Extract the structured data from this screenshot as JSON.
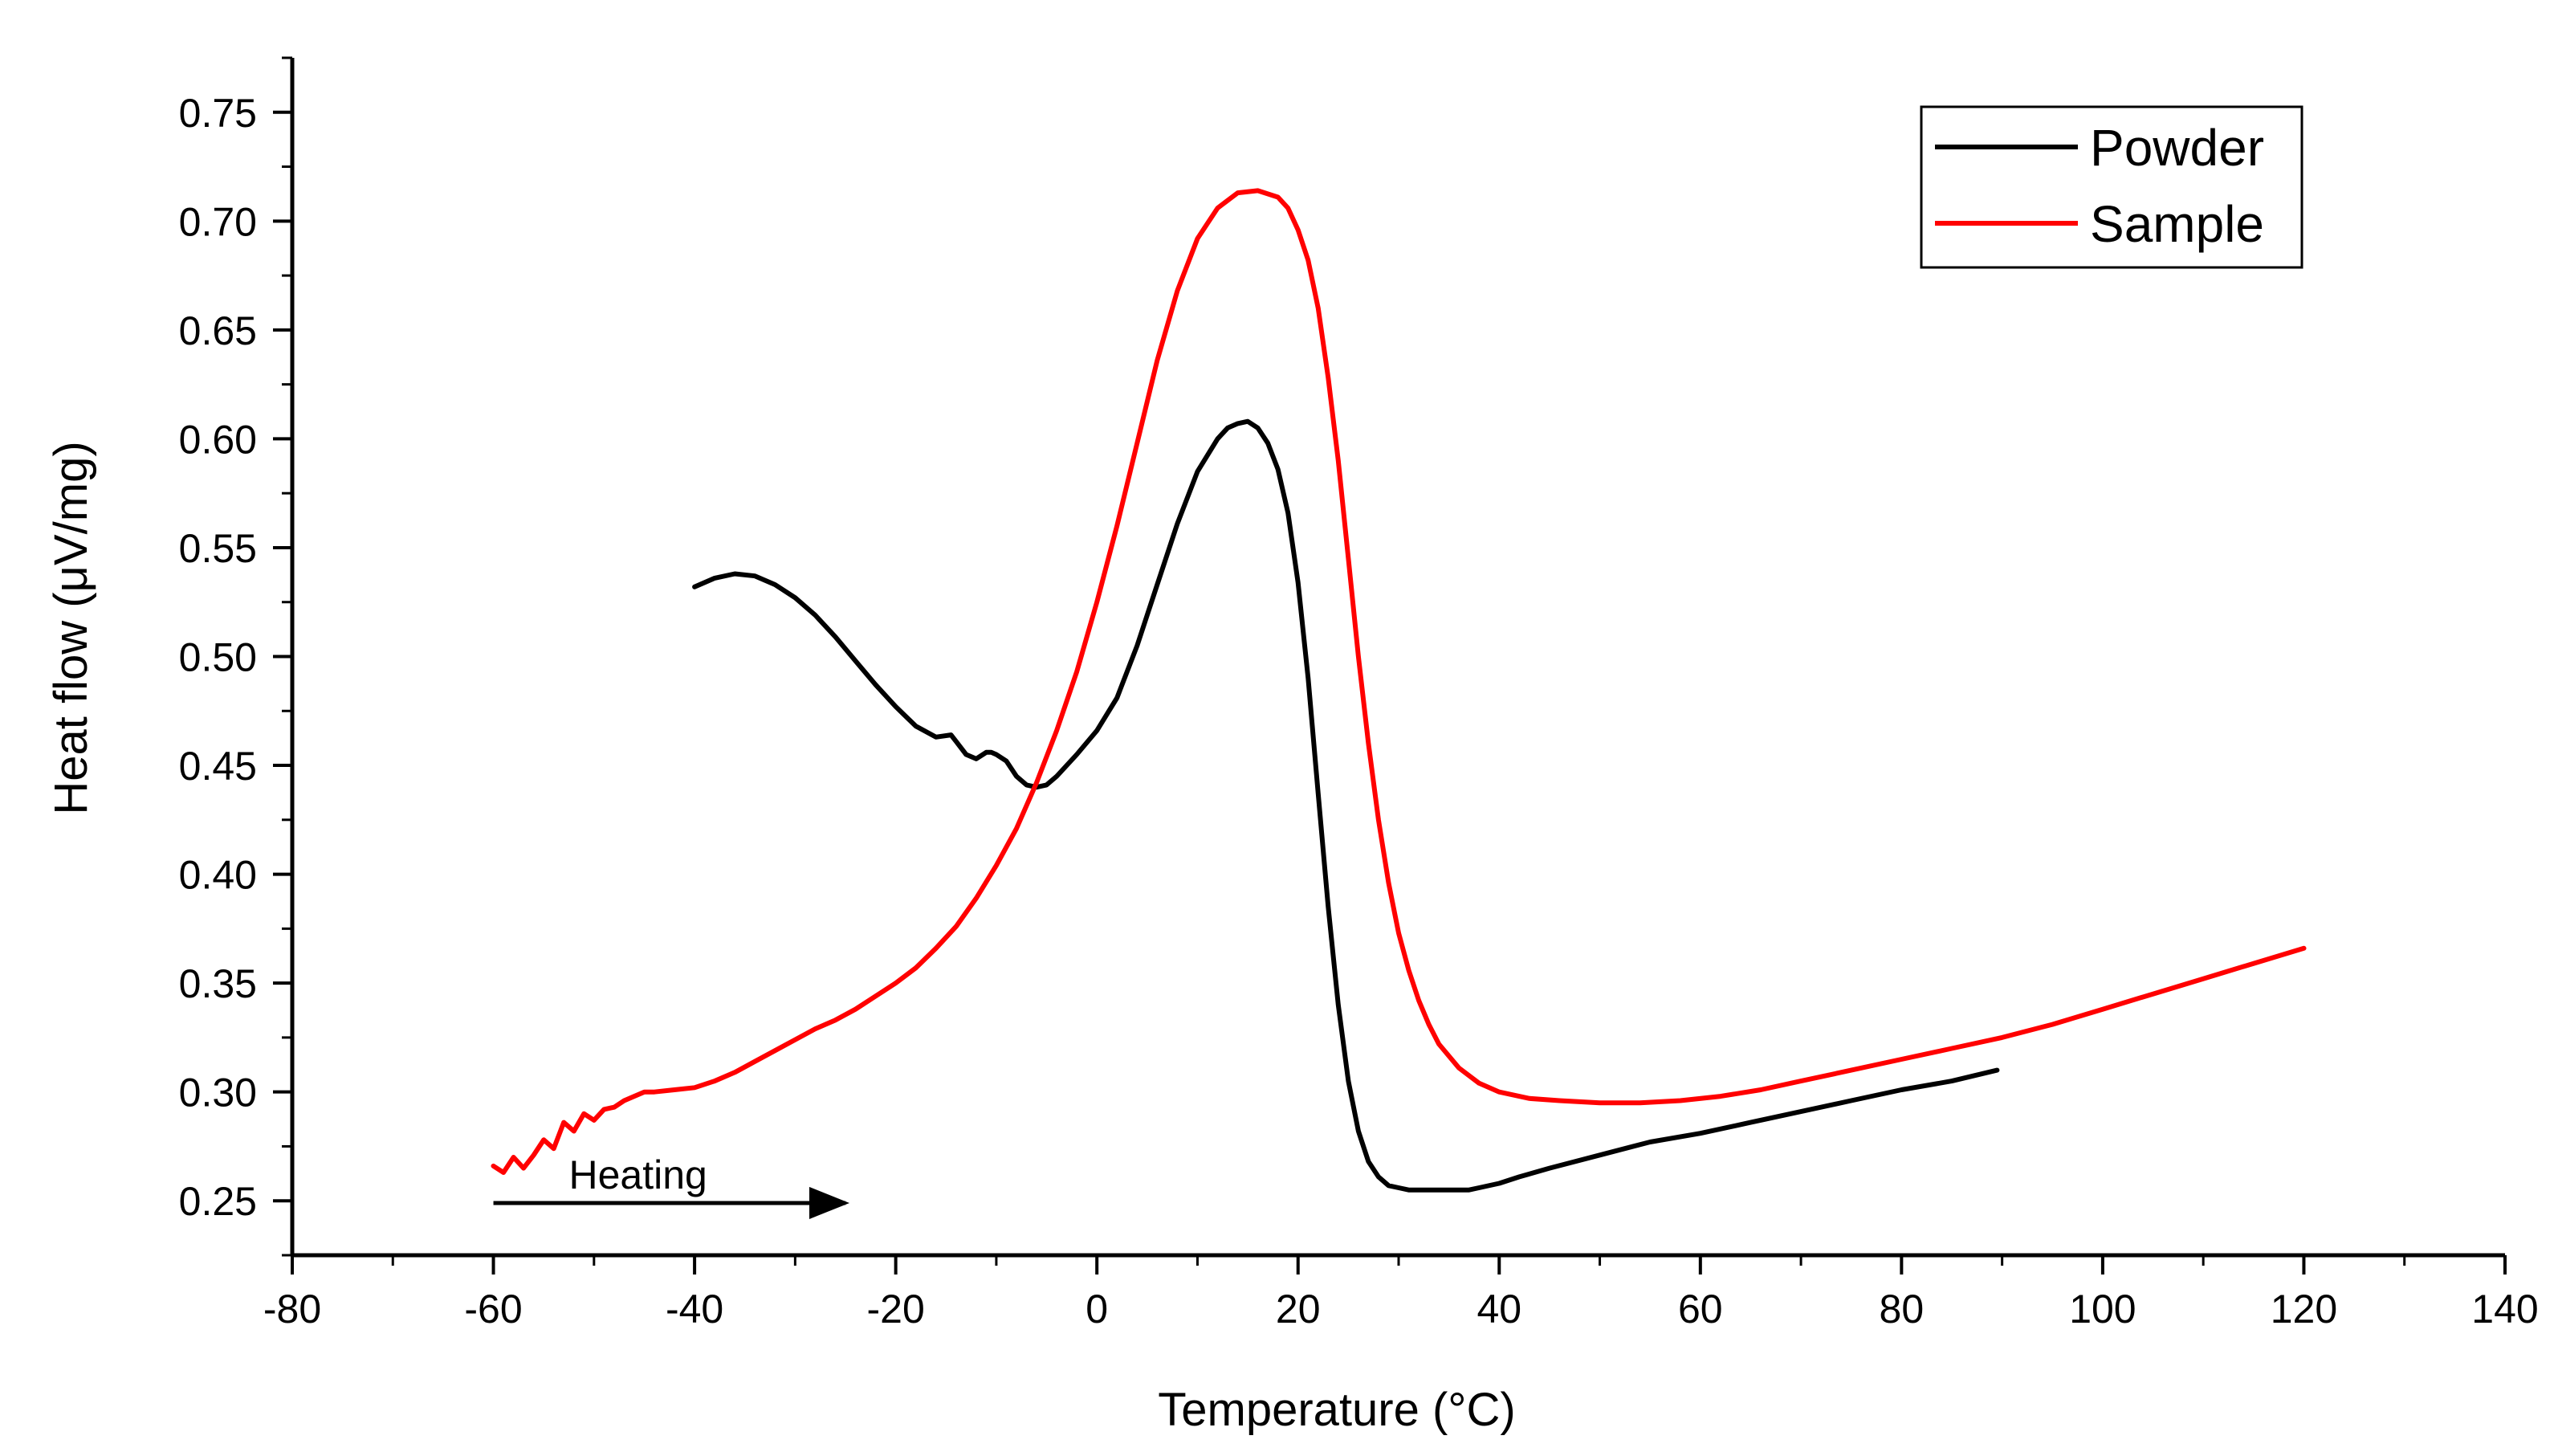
{
  "chart_data": {
    "type": "line",
    "xlabel": "Temperature (°C)",
    "ylabel": "Heat flow (μV/mg)",
    "xlim": [
      -80,
      140
    ],
    "ylim": [
      0.225,
      0.775
    ],
    "xticks": [
      -80,
      -60,
      -40,
      -20,
      0,
      20,
      40,
      60,
      80,
      100,
      120,
      140
    ],
    "xtick_labels": [
      "-80",
      "-60",
      "-40",
      "-20",
      "0",
      "20",
      "40",
      "60",
      "80",
      "100",
      "120",
      "140"
    ],
    "yticks": [
      0.25,
      0.3,
      0.35,
      0.4,
      0.45,
      0.5,
      0.55,
      0.6,
      0.65,
      0.7,
      0.75
    ],
    "ytick_labels": [
      "0.25",
      "0.30",
      "0.35",
      "0.40",
      "0.45",
      "0.50",
      "0.55",
      "0.60",
      "0.65",
      "0.70",
      "0.75"
    ],
    "legend_position": "top-right",
    "series": [
      {
        "name": "Powder",
        "color": "#000000",
        "x": [
          -40,
          -38,
          -36,
          -34,
          -32,
          -30,
          -28,
          -26,
          -24,
          -22,
          -20,
          -18,
          -16,
          -14.5,
          -14,
          -13,
          -12,
          -11,
          -10.5,
          -10,
          -9,
          -8,
          -7,
          -6,
          -5,
          -4,
          -2,
          0,
          2,
          4,
          6,
          8,
          10,
          12,
          13,
          14,
          15,
          16,
          17,
          18,
          19,
          20,
          21,
          22,
          23,
          24,
          25,
          26,
          27,
          28,
          29,
          30,
          31,
          32,
          33,
          34,
          35,
          36,
          37,
          38,
          40,
          42,
          45,
          50,
          55,
          60,
          65,
          70,
          75,
          80,
          85,
          89.5
        ],
        "y": [
          0.532,
          0.536,
          0.538,
          0.537,
          0.533,
          0.527,
          0.519,
          0.509,
          0.498,
          0.487,
          0.477,
          0.468,
          0.463,
          0.464,
          0.461,
          0.455,
          0.453,
          0.456,
          0.456,
          0.455,
          0.452,
          0.445,
          0.441,
          0.44,
          0.441,
          0.445,
          0.455,
          0.466,
          0.481,
          0.505,
          0.533,
          0.561,
          0.585,
          0.6,
          0.605,
          0.607,
          0.608,
          0.605,
          0.598,
          0.586,
          0.566,
          0.534,
          0.49,
          0.437,
          0.385,
          0.34,
          0.305,
          0.282,
          0.268,
          0.261,
          0.257,
          0.256,
          0.255,
          0.255,
          0.255,
          0.255,
          0.255,
          0.255,
          0.255,
          0.256,
          0.258,
          0.261,
          0.265,
          0.271,
          0.277,
          0.281,
          0.286,
          0.291,
          0.296,
          0.301,
          0.305,
          0.31
        ]
      },
      {
        "name": "Sample",
        "color": "#ff0000",
        "x": [
          -60,
          -59,
          -58,
          -57,
          -56,
          -55,
          -54,
          -53,
          -52,
          -51,
          -50,
          -49,
          -48,
          -47,
          -46,
          -45,
          -44,
          -42,
          -40,
          -38,
          -36,
          -34,
          -32,
          -30,
          -28,
          -26,
          -24,
          -22,
          -20,
          -18,
          -16,
          -14,
          -12,
          -10,
          -8,
          -6,
          -4,
          -2,
          0,
          2,
          4,
          6,
          8,
          10,
          12,
          14,
          16,
          18,
          19,
          20,
          21,
          22,
          23,
          24,
          25,
          26,
          27,
          28,
          29,
          30,
          31,
          32,
          33,
          34,
          36,
          38,
          40,
          43,
          46,
          50,
          54,
          58,
          62,
          66,
          70,
          75,
          80,
          85,
          90,
          95,
          100,
          105,
          110,
          115,
          120
        ],
        "y": [
          0.266,
          0.263,
          0.27,
          0.265,
          0.271,
          0.278,
          0.274,
          0.286,
          0.282,
          0.29,
          0.287,
          0.292,
          0.293,
          0.296,
          0.298,
          0.3,
          0.3,
          0.301,
          0.302,
          0.305,
          0.309,
          0.314,
          0.319,
          0.324,
          0.329,
          0.333,
          0.338,
          0.344,
          0.35,
          0.357,
          0.366,
          0.376,
          0.389,
          0.404,
          0.421,
          0.442,
          0.466,
          0.493,
          0.525,
          0.56,
          0.598,
          0.636,
          0.668,
          0.692,
          0.706,
          0.713,
          0.714,
          0.711,
          0.706,
          0.696,
          0.682,
          0.66,
          0.628,
          0.59,
          0.545,
          0.5,
          0.46,
          0.425,
          0.396,
          0.373,
          0.356,
          0.342,
          0.331,
          0.322,
          0.311,
          0.304,
          0.3,
          0.297,
          0.296,
          0.295,
          0.295,
          0.296,
          0.298,
          0.301,
          0.305,
          0.31,
          0.315,
          0.32,
          0.325,
          0.331,
          0.338,
          0.345,
          0.352,
          0.359,
          0.366
        ]
      }
    ],
    "annotations": [
      {
        "text": "Heating",
        "arrow_from_x": -60,
        "arrow_to_x": -25,
        "arrow_y": 0.249,
        "label_x": -52.5
      }
    ]
  }
}
